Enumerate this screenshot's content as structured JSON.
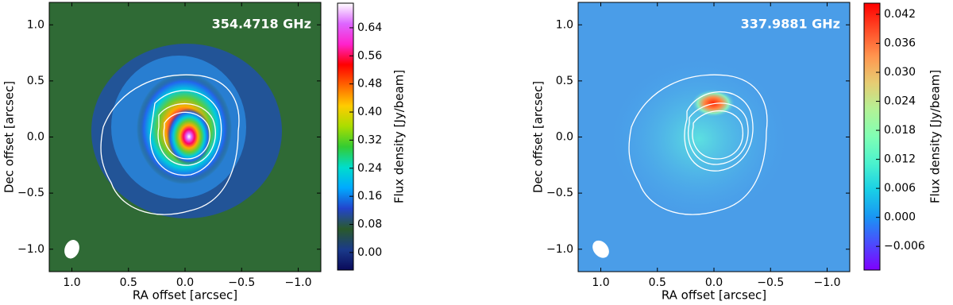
{
  "chart_data": [
    {
      "type": "image",
      "annotation": "354.4718 GHz",
      "xlabel": "RA offset [arcsec]",
      "ylabel": "Dec offset [arcsec]",
      "xlim": [
        1.2,
        -1.2
      ],
      "ylim": [
        -1.2,
        1.2
      ],
      "xticks": [
        {
          "value": 1,
          "label": "1.0"
        },
        0.5,
        {
          "value": 0,
          "label": "0.0"
        },
        {
          "value": -0.5,
          "label": "−0.5"
        },
        {
          "value": -1,
          "label": "−1.0"
        }
      ],
      "yticks": [
        {
          "value": -1,
          "label": "−1.0"
        },
        {
          "value": -0.5,
          "label": "−0.5"
        },
        {
          "value": 0,
          "label": "0.0"
        },
        0.5,
        {
          "value": 1,
          "label": "1.0"
        }
      ],
      "colorbar_label": "Flux density [Jy/beam]",
      "clim": [
        -0.05,
        0.71
      ],
      "cticks": [
        {
          "value": 0,
          "label": "0.00"
        },
        0.08,
        0.16,
        0.24,
        0.32,
        {
          "value": 0.4,
          "label": "0.40"
        },
        0.48,
        0.56,
        0.64
      ],
      "colormap": [
        "#0a0a5a",
        "#1a3a8a",
        "#2a5a2a",
        "#2244cc",
        "#00aaff",
        "#00ddcc",
        "#33cc33",
        "#aadd00",
        "#ffcc00",
        "#ff6600",
        "#ff0000",
        "#ff22cc",
        "#dd66ff",
        "#ffffff"
      ]
    },
    {
      "type": "image",
      "annotation": "337.9881 GHz",
      "xlabel": "RA offset [arcsec]",
      "ylabel": "Dec offset [arcsec]",
      "xlim": [
        1.2,
        -1.2
      ],
      "ylim": [
        -1.2,
        1.2
      ],
      "xticks": [
        {
          "value": 1,
          "label": "1.0"
        },
        0.5,
        {
          "value": 0,
          "label": "0.0"
        },
        {
          "value": -0.5,
          "label": "−0.5"
        },
        {
          "value": -1,
          "label": "−1.0"
        }
      ],
      "yticks": [
        {
          "value": -1,
          "label": "−1.0"
        },
        {
          "value": -0.5,
          "label": "−0.5"
        },
        {
          "value": 0,
          "label": "0.0"
        },
        0.5,
        {
          "value": 1,
          "label": "1.0"
        }
      ],
      "colorbar_label": "Flux density [Jy/beam]",
      "clim": [
        -0.0109,
        0.0443
      ],
      "cticks": [
        {
          "value": -0.006,
          "label": "−0.006"
        },
        {
          "value": 0,
          "label": "0.000"
        },
        0.006,
        0.012,
        0.018,
        0.024,
        {
          "value": 0.03,
          "label": "0.030"
        },
        0.036,
        0.042
      ],
      "colormap": [
        "#7f00ff",
        "#4b4cfd",
        "#1996f3",
        "#19cfe6",
        "#4bf2ce",
        "#80ffb4",
        "#b2f296",
        "#e6cd73",
        "#ff964f",
        "#ff4c27",
        "#ff0000"
      ]
    }
  ]
}
